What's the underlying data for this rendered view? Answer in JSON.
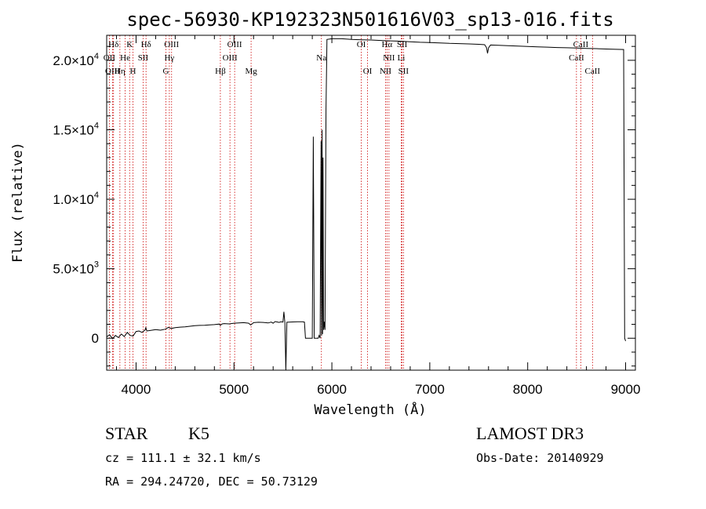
{
  "chart_data": {
    "type": "line",
    "title": "spec-56930-KP192323N501616V03_sp13-016.fits",
    "xlabel": "Wavelength (Å)",
    "ylabel": "Flux (relative)",
    "xlim": [
      3700,
      9100
    ],
    "ylim": [
      -2300,
      21800
    ],
    "x_ticks": [
      4000,
      5000,
      6000,
      7000,
      8000,
      9000
    ],
    "x_tick_labels": [
      "4000",
      "5000",
      "6000",
      "7000",
      "8000",
      "9000"
    ],
    "y_ticks": [
      {
        "value": 0,
        "mantissa": "0",
        "exp": ""
      },
      {
        "value": 5000,
        "mantissa": "5.0×10",
        "exp": "3"
      },
      {
        "value": 10000,
        "mantissa": "1.0×10",
        "exp": "4"
      },
      {
        "value": 15000,
        "mantissa": "1.5×10",
        "exp": "4"
      },
      {
        "value": 20000,
        "mantissa": "2.0×10",
        "exp": "4"
      }
    ],
    "series": [
      {
        "name": "spectrum",
        "color": "#000000",
        "points": [
          [
            3700,
            100
          ],
          [
            3730,
            250
          ],
          [
            3760,
            -30
          ],
          [
            3790,
            200
          ],
          [
            3820,
            50
          ],
          [
            3850,
            300
          ],
          [
            3880,
            120
          ],
          [
            3910,
            420
          ],
          [
            3940,
            200
          ],
          [
            3970,
            160
          ],
          [
            4000,
            480
          ],
          [
            4030,
            520
          ],
          [
            4060,
            420
          ],
          [
            4090,
            580
          ],
          [
            4100,
            760
          ],
          [
            4110,
            520
          ],
          [
            4150,
            560
          ],
          [
            4200,
            620
          ],
          [
            4250,
            580
          ],
          [
            4300,
            650
          ],
          [
            4330,
            780
          ],
          [
            4360,
            700
          ],
          [
            4400,
            760
          ],
          [
            4450,
            800
          ],
          [
            4500,
            820
          ],
          [
            4550,
            860
          ],
          [
            4600,
            900
          ],
          [
            4650,
            920
          ],
          [
            4700,
            930
          ],
          [
            4750,
            960
          ],
          [
            4800,
            980
          ],
          [
            4850,
            1020
          ],
          [
            4860,
            920
          ],
          [
            4880,
            1030
          ],
          [
            4900,
            1050
          ],
          [
            4950,
            1030
          ],
          [
            5000,
            1080
          ],
          [
            5050,
            1100
          ],
          [
            5100,
            1120
          ],
          [
            5150,
            1080
          ],
          [
            5170,
            950
          ],
          [
            5190,
            1060
          ],
          [
            5200,
            1120
          ],
          [
            5250,
            1150
          ],
          [
            5300,
            1140
          ],
          [
            5350,
            1100
          ],
          [
            5380,
            1160
          ],
          [
            5400,
            1080
          ],
          [
            5420,
            1200
          ],
          [
            5440,
            1170
          ],
          [
            5460,
            1140
          ],
          [
            5480,
            1180
          ],
          [
            5500,
            1160
          ],
          [
            5510,
            1900
          ],
          [
            5520,
            1100
          ],
          [
            5530,
            -2300
          ],
          [
            5540,
            1150
          ],
          [
            5600,
            1170
          ],
          [
            5650,
            1180
          ],
          [
            5700,
            1180
          ],
          [
            5720,
            1160
          ],
          [
            5730,
            0
          ],
          [
            5800,
            0
          ],
          [
            5810,
            14500
          ],
          [
            5820,
            0
          ],
          [
            5860,
            0
          ],
          [
            5870,
            200
          ],
          [
            5880,
            0
          ],
          [
            5890,
            14200
          ],
          [
            5895,
            200
          ],
          [
            5900,
            15000
          ],
          [
            5905,
            300
          ],
          [
            5910,
            13000
          ],
          [
            5915,
            600
          ],
          [
            5920,
            1200
          ],
          [
            5930,
            600
          ],
          [
            5940,
            16500
          ],
          [
            5950,
            21500
          ],
          [
            6000,
            21550
          ],
          [
            6100,
            21550
          ],
          [
            6200,
            21500
          ],
          [
            6300,
            21480
          ],
          [
            6400,
            21460
          ],
          [
            6500,
            21430
          ],
          [
            6600,
            21400
          ],
          [
            6700,
            21370
          ],
          [
            6800,
            21330
          ],
          [
            6900,
            21300
          ],
          [
            7000,
            21280
          ],
          [
            7100,
            21250
          ],
          [
            7200,
            21220
          ],
          [
            7300,
            21200
          ],
          [
            7400,
            21180
          ],
          [
            7500,
            21150
          ],
          [
            7560,
            21120
          ],
          [
            7580,
            20900
          ],
          [
            7590,
            20500
          ],
          [
            7600,
            20900
          ],
          [
            7620,
            21100
          ],
          [
            7700,
            21080
          ],
          [
            7800,
            21050
          ],
          [
            7900,
            21020
          ],
          [
            8000,
            21000
          ],
          [
            8100,
            20970
          ],
          [
            8200,
            20950
          ],
          [
            8300,
            20920
          ],
          [
            8400,
            20900
          ],
          [
            8500,
            20880
          ],
          [
            8600,
            20860
          ],
          [
            8700,
            20840
          ],
          [
            8800,
            20810
          ],
          [
            8900,
            20790
          ],
          [
            8980,
            20780
          ],
          [
            8990,
            0
          ],
          [
            9000,
            -200
          ]
        ]
      }
    ],
    "annotations": [
      {
        "name": "Hδ",
        "x": 3770,
        "row": 0
      },
      {
        "name": "K",
        "x": 3934,
        "row": 0
      },
      {
        "name": "Hδ",
        "x": 4102,
        "row": 0
      },
      {
        "name": "OIII",
        "x": 4363,
        "row": 0
      },
      {
        "name": "OIII",
        "x": 5007,
        "row": 0
      },
      {
        "name": "OI",
        "x": 6300,
        "row": 0
      },
      {
        "name": "Hα",
        "x": 6563,
        "row": 0
      },
      {
        "name": "SII",
        "x": 6717,
        "row": 0
      },
      {
        "name": "CaII",
        "x": 8542,
        "row": 0
      },
      {
        "name": "OII",
        "x": 3727,
        "row": 1
      },
      {
        "name": "He",
        "x": 3889,
        "row": 1
      },
      {
        "name": "SII",
        "x": 4072,
        "row": 1
      },
      {
        "name": "Hγ",
        "x": 4340,
        "row": 1
      },
      {
        "name": "OIII",
        "x": 4959,
        "row": 1
      },
      {
        "name": "Na",
        "x": 5893,
        "row": 1
      },
      {
        "name": "NII",
        "x": 6583,
        "row": 1
      },
      {
        "name": "Li",
        "x": 6708,
        "row": 1
      },
      {
        "name": "CaII",
        "x": 8498,
        "row": 1
      },
      {
        "name": "OIII",
        "x": 3760,
        "row": 2
      },
      {
        "name": "Hη",
        "x": 3835,
        "row": 2
      },
      {
        "name": "H",
        "x": 3968,
        "row": 2
      },
      {
        "name": "G",
        "x": 4305,
        "row": 2
      },
      {
        "name": "Hβ",
        "x": 4861,
        "row": 2
      },
      {
        "name": "Mg",
        "x": 5175,
        "row": 2
      },
      {
        "name": "OI",
        "x": 6364,
        "row": 2
      },
      {
        "name": "NII",
        "x": 6548,
        "row": 2
      },
      {
        "name": "SII",
        "x": 6731,
        "row": 2
      },
      {
        "name": "CaII",
        "x": 8662,
        "row": 2
      }
    ],
    "vlines": [
      3727,
      3760,
      3770,
      3835,
      3889,
      3934,
      3968,
      4072,
      4102,
      4305,
      4340,
      4363,
      4861,
      4959,
      5007,
      5175,
      5893,
      6300,
      6364,
      6548,
      6563,
      6583,
      6708,
      6717,
      6731,
      8498,
      8542,
      8662
    ],
    "vline_color": "#cc0000"
  },
  "info": {
    "obj_class": "STAR",
    "subclass": "K5",
    "survey": "LAMOST DR3",
    "cz": "cz = 111.1 ± 32.1 km/s",
    "obs_date": "Obs-Date: 20140929",
    "coords": "RA = 294.24720, DEC =  50.73129"
  }
}
